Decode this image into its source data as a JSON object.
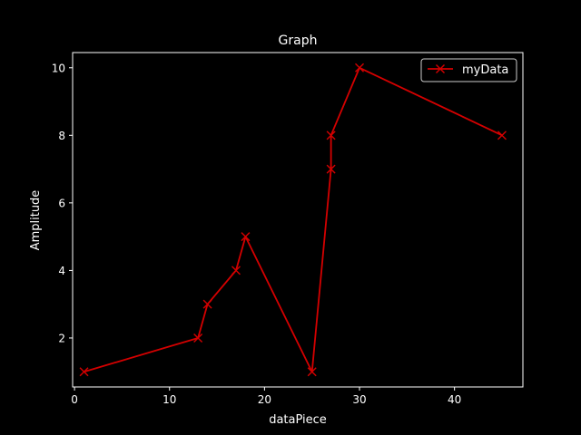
{
  "chart_data": {
    "type": "line",
    "title": "Graph",
    "xlabel": "dataPiece",
    "ylabel": "Amplitude",
    "xlim": [
      -0.2,
      47.2
    ],
    "ylim": [
      0.55,
      10.45
    ],
    "xticks": [
      0,
      10,
      20,
      30,
      40
    ],
    "yticks": [
      2,
      4,
      6,
      8,
      10
    ],
    "grid": false,
    "legend_position": "top-right",
    "series": [
      {
        "name": "myData",
        "color": "#d40000",
        "marker": "x",
        "x": [
          1,
          13,
          14,
          17,
          18,
          25,
          27,
          27,
          30,
          45
        ],
        "y": [
          1,
          2,
          3,
          4,
          5,
          1,
          7,
          8,
          10,
          8
        ]
      }
    ]
  }
}
